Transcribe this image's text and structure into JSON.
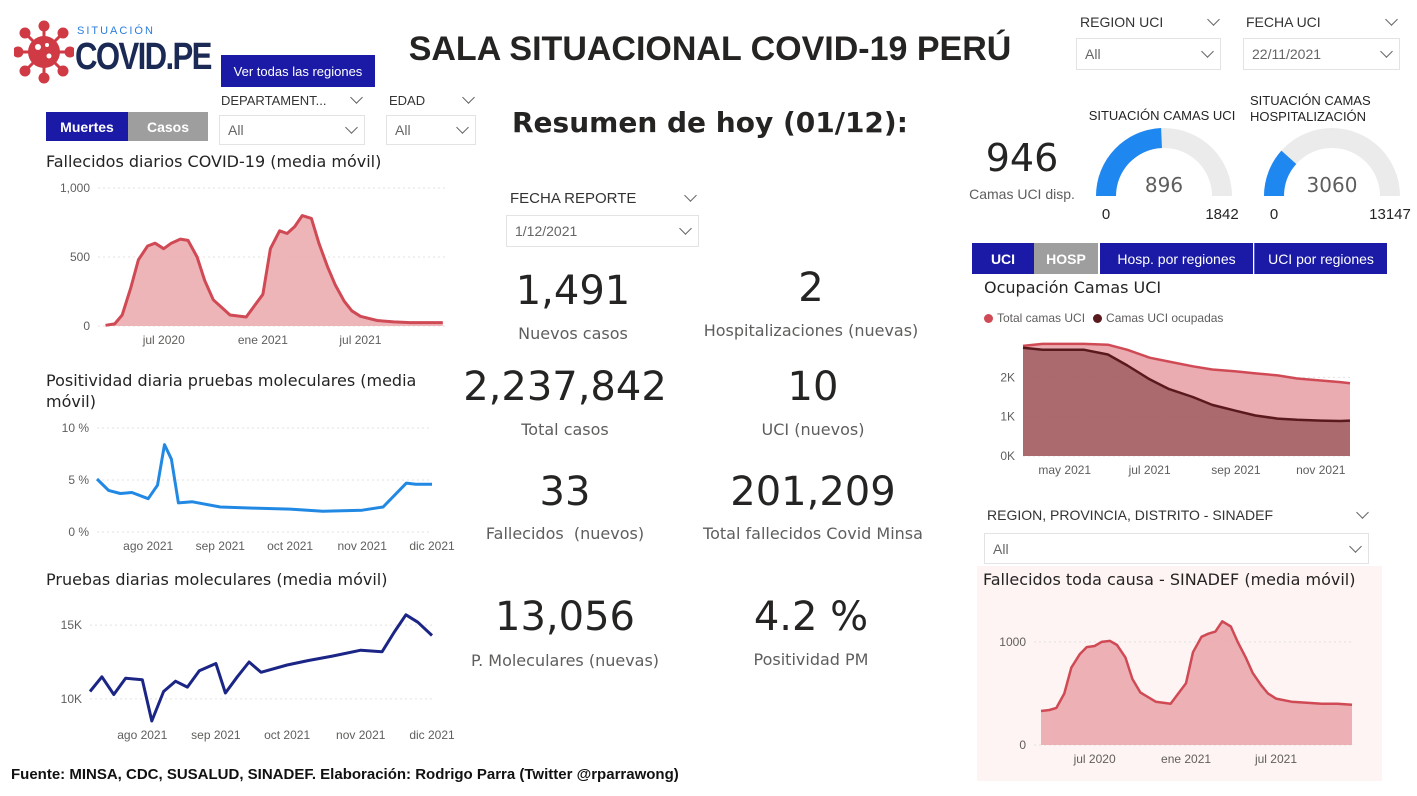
{
  "header": {
    "logo_small": "SITUACIÓN",
    "logo_main": "COVID.PE",
    "all_regions_button": "Ver todas las regiones",
    "title": "SALA SITUACIONAL COVID-19 PERÚ"
  },
  "filters": {
    "departamento": {
      "label": "DEPARTAMENT...",
      "value": "All"
    },
    "edad": {
      "label": "EDAD",
      "value": "All"
    },
    "region_uci": {
      "label": "REGION UCI",
      "value": "All"
    },
    "fecha_uci": {
      "label": "FECHA UCI",
      "value": "22/11/2021"
    },
    "fecha_reporte": {
      "label": "FECHA REPORTE",
      "value": "1/12/2021"
    },
    "sinadef_region": {
      "label": "REGION, PROVINCIA, DISTRITO - SINADEF",
      "value": "All"
    }
  },
  "toggles": {
    "muertes": "Muertes",
    "casos": "Casos",
    "uci": "UCI",
    "hosp": "HOSP",
    "hosp_regiones": "Hosp. por regiones",
    "uci_regiones": "UCI por regiones"
  },
  "summary": {
    "title": "Resumen de hoy (01/12):",
    "kpis": [
      {
        "value": "1,491",
        "label": "Nuevos casos"
      },
      {
        "value": "2",
        "label": "Hospitalizaciones (nuevas)"
      },
      {
        "value": "2,237,842",
        "label": "Total casos"
      },
      {
        "value": "10",
        "label": "UCI (nuevos)"
      },
      {
        "value": "33",
        "label": "Fallecidos  (nuevos)"
      },
      {
        "value": "201,209",
        "label": "Total fallecidos Covid Minsa"
      },
      {
        "value": "13,056",
        "label": "P. Moleculares (nuevas)"
      },
      {
        "value": "4.2 %",
        "label": "Positividad PM"
      }
    ]
  },
  "beds": {
    "uci_available": {
      "value": "946",
      "label": "Camas UCI disp."
    },
    "uci_gauge": {
      "title": "SITUACIÓN CAMAS UCI",
      "value": 896,
      "min": 0,
      "max": 1842
    },
    "hosp_gauge": {
      "title": "SITUACIÓN CAMAS HOSPITALIZACIÓN",
      "value": 3060,
      "min": 0,
      "max": 13147
    }
  },
  "colors": {
    "navy": "#1a1aa6",
    "red": "#d04a55",
    "red_fill": "#ecadb1",
    "blue": "#2189e3",
    "darkblue": "#1b2585",
    "maroon": "#5a1a1d",
    "gauge_blue": "#1e88f0",
    "gauge_bg": "#ebebeb"
  },
  "footer": "Fuente: MINSA, CDC, SUSALUD, SINADEF. Elaboración: Rodrigo Parra (Twitter @rparrawong)",
  "chart_data": [
    {
      "id": "deaths",
      "type": "area",
      "title": "Fallecidos diarios COVID-19 (media móvil)",
      "x_ticks": [
        "jul 2020",
        "ene 2021",
        "jul 2021"
      ],
      "y_ticks": [
        "1,000",
        "500",
        "0"
      ],
      "ylim": [
        0,
        1000
      ],
      "x": [
        "2020-03-15",
        "2020-04-01",
        "2020-04-15",
        "2020-05-01",
        "2020-05-15",
        "2020-06-01",
        "2020-06-15",
        "2020-07-01",
        "2020-07-15",
        "2020-08-01",
        "2020-08-15",
        "2020-09-01",
        "2020-09-15",
        "2020-10-01",
        "2020-11-01",
        "2020-12-01",
        "2021-01-01",
        "2021-01-15",
        "2021-02-01",
        "2021-02-15",
        "2021-03-01",
        "2021-03-15",
        "2021-04-01",
        "2021-04-15",
        "2021-05-01",
        "2021-05-15",
        "2021-06-01",
        "2021-06-15",
        "2021-07-01",
        "2021-08-01",
        "2021-09-01",
        "2021-10-01",
        "2021-11-01",
        "2021-12-01"
      ],
      "values": [
        5,
        15,
        80,
        280,
        480,
        580,
        600,
        560,
        600,
        630,
        620,
        500,
        330,
        190,
        80,
        65,
        230,
        560,
        690,
        670,
        720,
        800,
        780,
        600,
        430,
        300,
        180,
        110,
        70,
        40,
        30,
        25,
        25,
        25
      ]
    },
    {
      "id": "positivity",
      "type": "line",
      "title": "Positividad diaria pruebas moleculares (media móvil)",
      "x_ticks": [
        "ago 2021",
        "sep 2021",
        "oct 2021",
        "nov 2021",
        "dic 2021"
      ],
      "y_ticks": [
        "10 %",
        "5 %",
        "0 %"
      ],
      "ylim": [
        0,
        10
      ],
      "x": [
        "2021-07-10",
        "2021-07-15",
        "2021-07-20",
        "2021-07-25",
        "2021-08-01",
        "2021-08-05",
        "2021-08-08",
        "2021-08-11",
        "2021-08-14",
        "2021-08-20",
        "2021-09-01",
        "2021-09-15",
        "2021-10-01",
        "2021-10-15",
        "2021-11-01",
        "2021-11-10",
        "2021-11-20",
        "2021-11-24",
        "2021-12-01"
      ],
      "values": [
        5.1,
        4.0,
        3.7,
        3.8,
        3.2,
        4.5,
        8.4,
        7.0,
        2.8,
        2.9,
        2.4,
        2.3,
        2.2,
        2.0,
        2.1,
        2.4,
        4.7,
        4.6,
        4.6
      ]
    },
    {
      "id": "tests",
      "type": "line",
      "title": "Pruebas diarias moleculares (media móvil)",
      "x_ticks": [
        "ago 2021",
        "sep 2021",
        "oct 2021",
        "nov 2021",
        "dic 2021"
      ],
      "y_ticks": [
        "15K",
        "10K"
      ],
      "ylim": [
        8500,
        16500
      ],
      "x": [
        "2021-07-10",
        "2021-07-15",
        "2021-07-20",
        "2021-07-25",
        "2021-08-01",
        "2021-08-05",
        "2021-08-10",
        "2021-08-15",
        "2021-08-20",
        "2021-08-25",
        "2021-09-01",
        "2021-09-05",
        "2021-09-10",
        "2021-09-15",
        "2021-09-20",
        "2021-10-01",
        "2021-10-10",
        "2021-10-20",
        "2021-11-01",
        "2021-11-10",
        "2021-11-15",
        "2021-11-20",
        "2021-11-25",
        "2021-12-01"
      ],
      "values": [
        10500,
        11500,
        10300,
        11400,
        11300,
        8500,
        10500,
        11200,
        10800,
        11900,
        12400,
        10400,
        11500,
        12500,
        11800,
        12300,
        12600,
        12900,
        13300,
        13200,
        14500,
        15700,
        15200,
        14300
      ]
    },
    {
      "id": "uci_occupancy",
      "type": "area",
      "title": "Ocupación Camas UCI",
      "legend": [
        "Total camas UCI",
        "Camas UCI ocupadas"
      ],
      "x_ticks": [
        "may 2021",
        "jul 2021",
        "sep 2021",
        "nov 2021"
      ],
      "y_ticks": [
        "2K",
        "1K",
        "0K"
      ],
      "ylim": [
        0,
        3000
      ],
      "x": [
        "2021-04-01",
        "2021-04-15",
        "2021-05-01",
        "2021-05-15",
        "2021-06-01",
        "2021-06-15",
        "2021-07-01",
        "2021-07-15",
        "2021-08-01",
        "2021-08-15",
        "2021-09-01",
        "2021-09-15",
        "2021-10-01",
        "2021-10-15",
        "2021-11-01",
        "2021-11-15",
        "2021-11-22"
      ],
      "series": [
        {
          "name": "Total camas UCI",
          "values": [
            2800,
            2850,
            2850,
            2850,
            2830,
            2700,
            2500,
            2400,
            2280,
            2200,
            2150,
            2100,
            2050,
            1970,
            1920,
            1880,
            1850
          ]
        },
        {
          "name": "Camas UCI ocupadas",
          "values": [
            2750,
            2700,
            2700,
            2700,
            2580,
            2300,
            1950,
            1700,
            1500,
            1300,
            1150,
            1030,
            950,
            920,
            900,
            890,
            900
          ]
        }
      ]
    },
    {
      "id": "sinadef",
      "type": "area",
      "title": "Fallecidos toda causa - SINADEF (media móvil)",
      "x_ticks": [
        "jul 2020",
        "ene 2021",
        "jul 2021"
      ],
      "y_ticks": [
        "1000",
        "0"
      ],
      "ylim": [
        0,
        1300
      ],
      "x": [
        "2020-03-15",
        "2020-04-01",
        "2020-04-15",
        "2020-05-01",
        "2020-05-15",
        "2020-06-01",
        "2020-06-15",
        "2020-07-01",
        "2020-07-15",
        "2020-08-01",
        "2020-08-15",
        "2020-09-01",
        "2020-09-15",
        "2020-10-01",
        "2020-11-01",
        "2020-12-01",
        "2021-01-01",
        "2021-01-15",
        "2021-02-01",
        "2021-02-15",
        "2021-03-01",
        "2021-03-15",
        "2021-04-01",
        "2021-04-15",
        "2021-05-01",
        "2021-05-15",
        "2021-06-01",
        "2021-06-15",
        "2021-07-01",
        "2021-08-01",
        "2021-09-01",
        "2021-10-01",
        "2021-11-01",
        "2021-12-01"
      ],
      "values": [
        330,
        340,
        360,
        500,
        750,
        880,
        950,
        960,
        1000,
        1010,
        970,
        850,
        640,
        510,
        420,
        400,
        600,
        900,
        1050,
        1080,
        1100,
        1200,
        1150,
        1000,
        850,
        700,
        580,
        500,
        450,
        420,
        410,
        400,
        400,
        390
      ]
    }
  ]
}
